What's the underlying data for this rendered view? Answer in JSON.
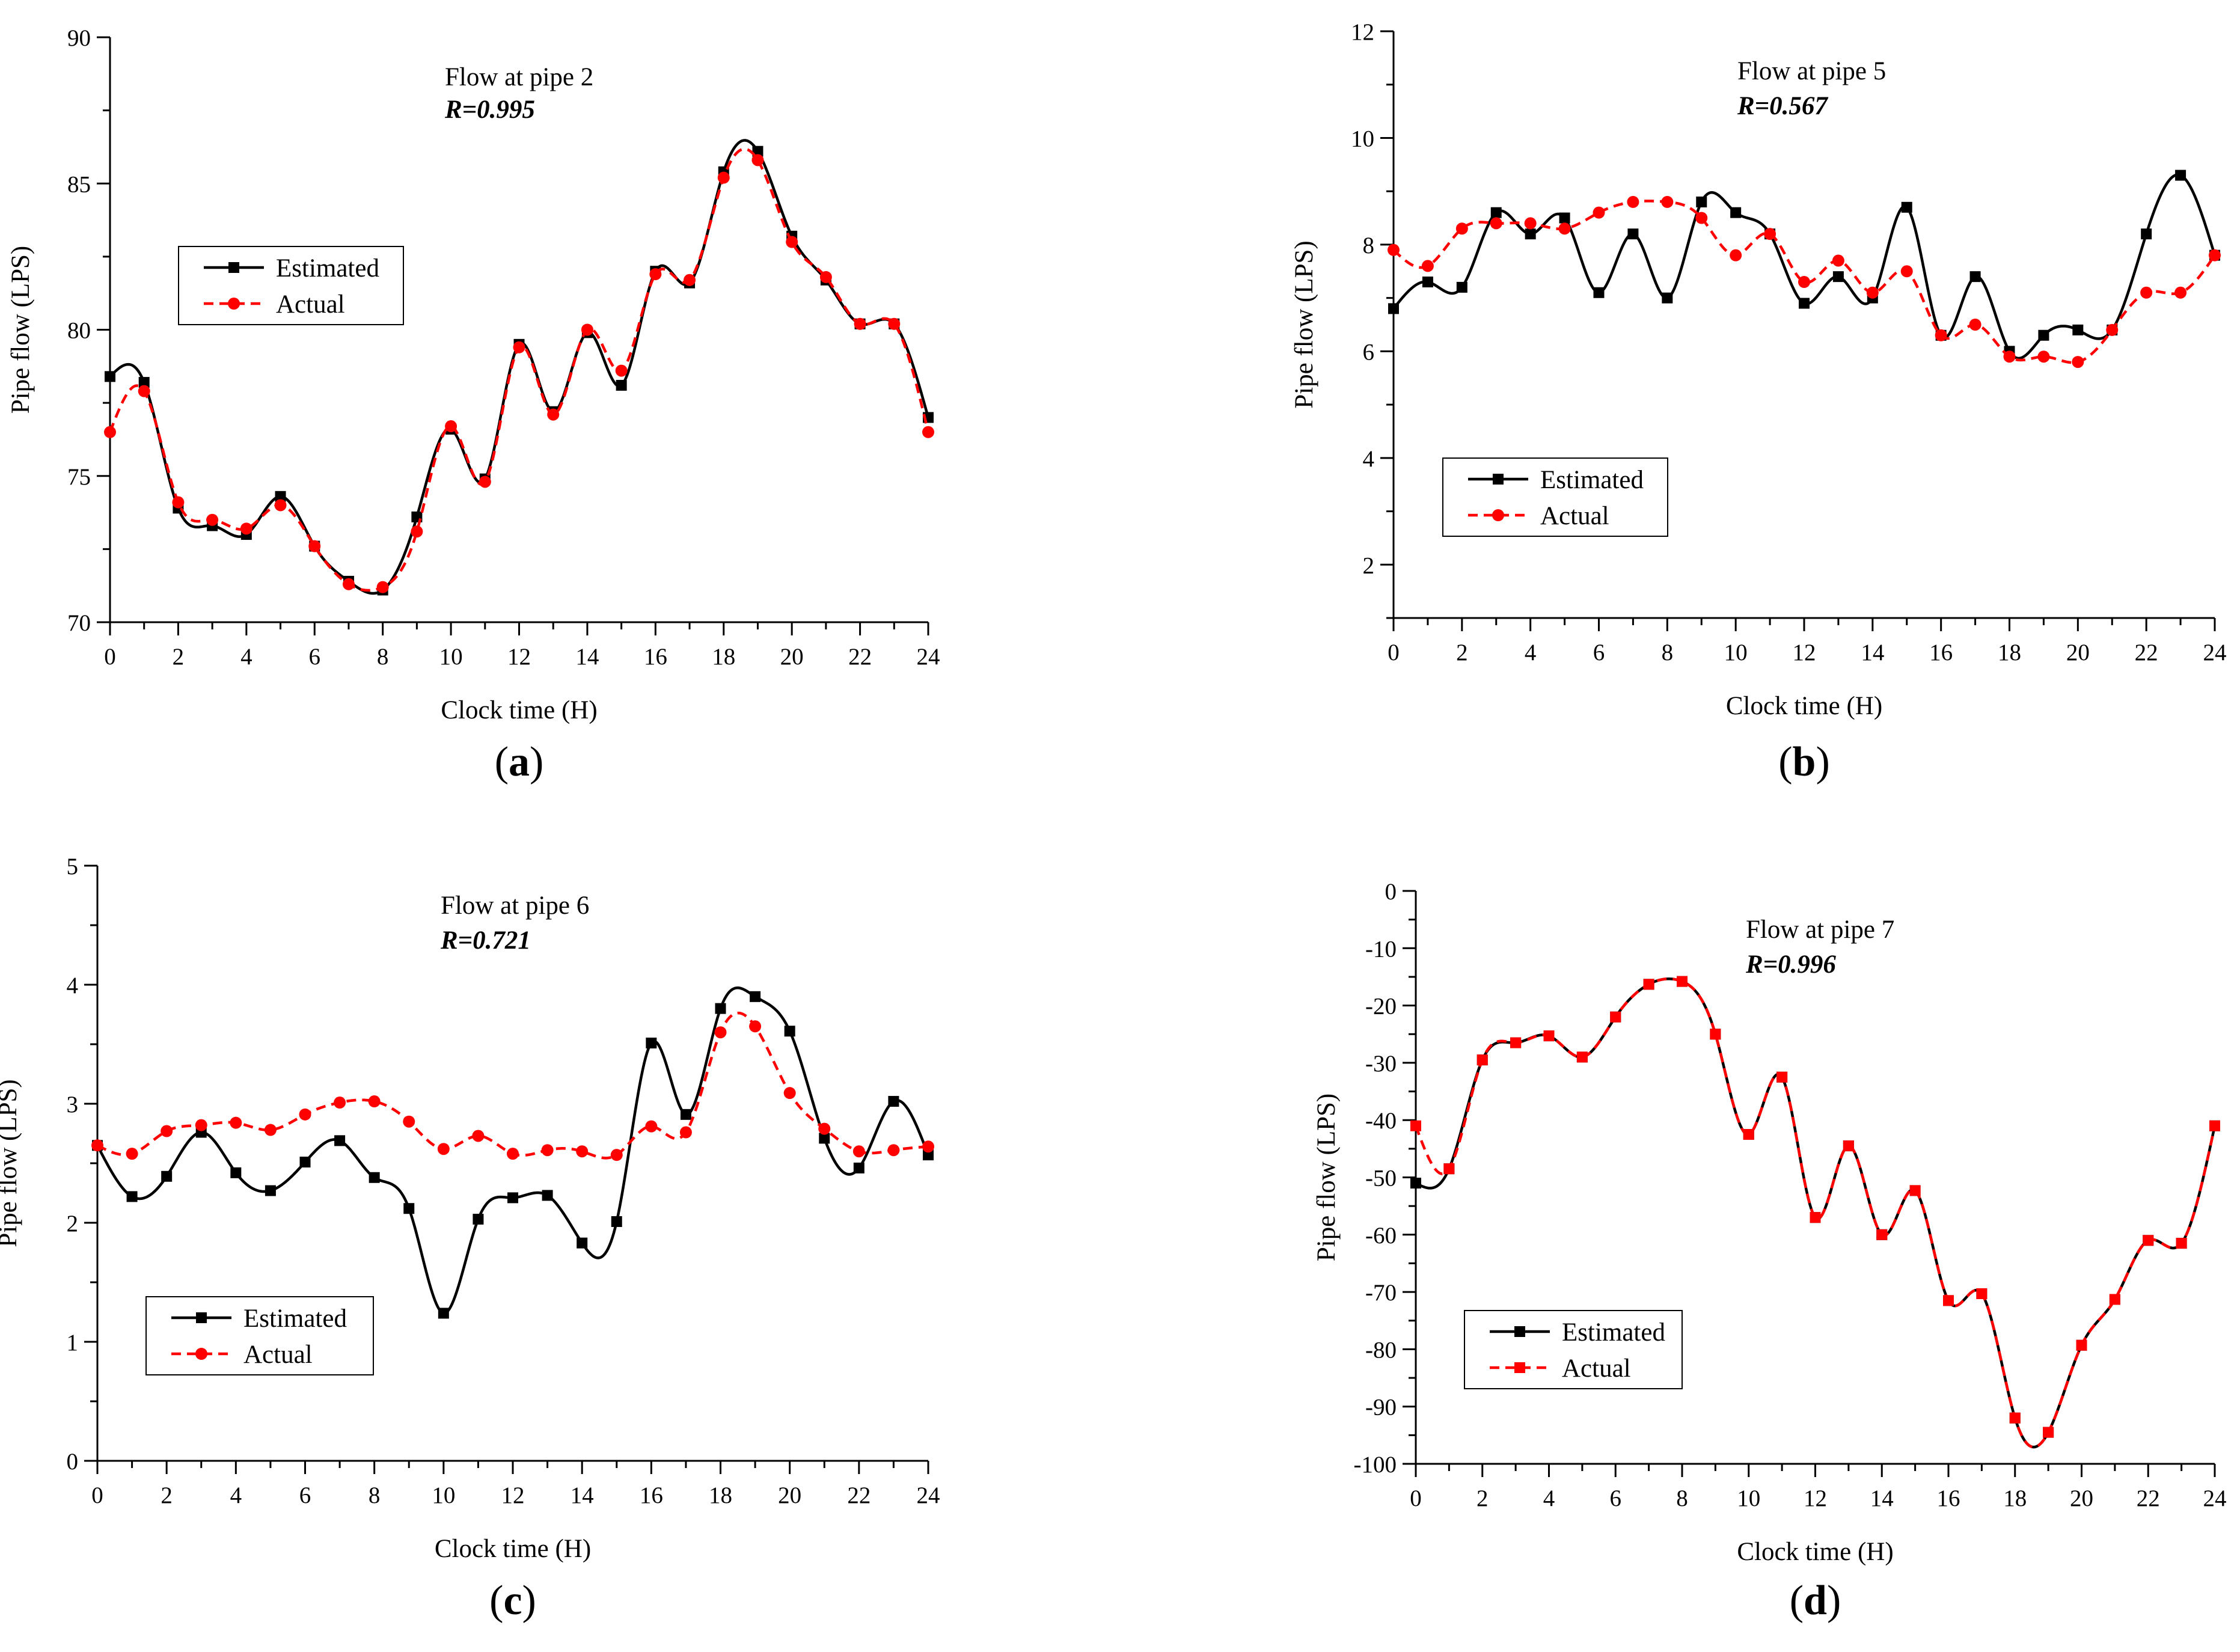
{
  "figure": {
    "series_colors": {
      "estimated": "#000000",
      "actual": "#ff0000"
    }
  },
  "chart_data": [
    {
      "type": "line",
      "panel_label": "(a)",
      "title": "Flow at pipe 2",
      "annotation": "R=0.995",
      "xlabel": "Clock time (H)",
      "ylabel": "Pipe flow (LPS)",
      "xlim": [
        0,
        24
      ],
      "ylim": [
        70,
        90
      ],
      "xticks": [
        0,
        2,
        4,
        6,
        8,
        10,
        12,
        14,
        16,
        18,
        20,
        22,
        24
      ],
      "yticks": [
        70,
        75,
        80,
        85,
        90
      ],
      "legend": {
        "position": "middle-left",
        "entries": [
          "Estimated",
          "Actual"
        ]
      },
      "x": [
        0,
        1,
        2,
        3,
        4,
        5,
        6,
        7,
        8,
        9,
        10,
        11,
        12,
        13,
        14,
        15,
        16,
        17,
        18,
        19,
        20,
        21,
        22,
        23,
        24
      ],
      "series": [
        {
          "name": "Estimated",
          "style": "solid",
          "marker": "square",
          "values": [
            78.4,
            78.2,
            73.9,
            73.3,
            73.0,
            74.3,
            72.6,
            71.4,
            71.1,
            73.6,
            76.6,
            74.9,
            79.5,
            77.2,
            79.9,
            78.1,
            82.0,
            81.6,
            85.4,
            86.1,
            83.2,
            81.7,
            80.2,
            80.2,
            77.0
          ]
        },
        {
          "name": "Actual",
          "style": "dashed",
          "marker": "circle",
          "values": [
            76.5,
            77.9,
            74.1,
            73.5,
            73.2,
            74.0,
            72.6,
            71.3,
            71.2,
            73.1,
            76.7,
            74.8,
            79.4,
            77.1,
            80.0,
            78.6,
            81.9,
            81.7,
            85.2,
            85.8,
            83.0,
            81.8,
            80.2,
            80.2,
            76.5
          ]
        }
      ]
    },
    {
      "type": "line",
      "panel_label": "(b)",
      "title": "Flow at pipe 5",
      "annotation": "R=0.567",
      "xlabel": "Clock time (H)",
      "ylabel": "Pipe flow (LPS)",
      "xlim": [
        0,
        24
      ],
      "ylim": [
        1,
        12
      ],
      "xticks": [
        0,
        2,
        4,
        6,
        8,
        10,
        12,
        14,
        16,
        18,
        20,
        22,
        24
      ],
      "yticks": [
        2,
        4,
        6,
        8,
        10,
        12
      ],
      "legend": {
        "position": "bottom-left",
        "entries": [
          "Estimated",
          "Actual"
        ]
      },
      "x": [
        0,
        1,
        2,
        3,
        4,
        5,
        6,
        7,
        8,
        9,
        10,
        11,
        12,
        13,
        14,
        15,
        16,
        17,
        18,
        19,
        20,
        21,
        22,
        23,
        24
      ],
      "series": [
        {
          "name": "Estimated",
          "style": "solid",
          "marker": "square",
          "values": [
            6.8,
            7.3,
            7.2,
            8.6,
            8.2,
            8.5,
            7.1,
            8.2,
            7.0,
            8.8,
            8.6,
            8.2,
            6.9,
            7.4,
            7.0,
            8.7,
            6.3,
            7.4,
            6.0,
            6.3,
            6.4,
            6.4,
            8.2,
            9.3,
            7.8
          ]
        },
        {
          "name": "Actual",
          "style": "dashed",
          "marker": "circle",
          "values": [
            7.9,
            7.6,
            8.3,
            8.4,
            8.4,
            8.3,
            8.6,
            8.8,
            8.8,
            8.5,
            7.8,
            8.2,
            7.3,
            7.7,
            7.1,
            7.5,
            6.3,
            6.5,
            5.9,
            5.9,
            5.8,
            6.4,
            7.1,
            7.1,
            7.8
          ]
        }
      ]
    },
    {
      "type": "line",
      "panel_label": "(c)",
      "title": "Flow at pipe 6",
      "annotation": "R=0.721",
      "xlabel": "Clock time (H)",
      "ylabel": "Pipe flow (LPS)",
      "xlim": [
        0,
        24
      ],
      "ylim": [
        0,
        5
      ],
      "xticks": [
        0,
        2,
        4,
        6,
        8,
        10,
        12,
        14,
        16,
        18,
        20,
        22,
        24
      ],
      "yticks": [
        0,
        1,
        2,
        3,
        4,
        5
      ],
      "legend": {
        "position": "bottom-left",
        "entries": [
          "Estimated",
          "Actual"
        ]
      },
      "x": [
        0,
        1,
        2,
        3,
        4,
        5,
        6,
        7,
        8,
        9,
        10,
        11,
        12,
        13,
        14,
        15,
        16,
        17,
        18,
        19,
        20,
        21,
        22,
        23,
        24
      ],
      "series": [
        {
          "name": "Estimated",
          "style": "solid",
          "marker": "square",
          "values": [
            2.65,
            2.22,
            2.39,
            2.76,
            2.42,
            2.27,
            2.51,
            2.69,
            2.38,
            2.12,
            1.24,
            2.03,
            2.21,
            2.23,
            1.83,
            2.01,
            3.51,
            2.91,
            3.8,
            3.9,
            3.61,
            2.71,
            2.46,
            3.02,
            2.57
          ]
        },
        {
          "name": "Actual",
          "style": "dashed",
          "marker": "circle",
          "values": [
            2.65,
            2.58,
            2.77,
            2.82,
            2.84,
            2.78,
            2.91,
            3.01,
            3.02,
            2.85,
            2.62,
            2.73,
            2.58,
            2.61,
            2.6,
            2.57,
            2.81,
            2.76,
            3.6,
            3.65,
            3.09,
            2.79,
            2.6,
            2.61,
            2.64
          ]
        }
      ]
    },
    {
      "type": "line",
      "panel_label": "(d)",
      "title": "Flow at pipe 7",
      "annotation": "R=0.996",
      "xlabel": "Clock time (H)",
      "ylabel": "Pipe flow (LPS)",
      "xlim": [
        0,
        24
      ],
      "ylim": [
        -100,
        0
      ],
      "xticks": [
        0,
        2,
        4,
        6,
        8,
        10,
        12,
        14,
        16,
        18,
        20,
        22,
        24
      ],
      "yticks": [
        0,
        -10,
        -20,
        -30,
        -40,
        -50,
        -60,
        -70,
        -80,
        -90,
        -100
      ],
      "legend": {
        "position": "bottom-left",
        "entries": [
          "Estimated",
          "Actual"
        ]
      },
      "x": [
        0,
        1,
        2,
        3,
        4,
        5,
        6,
        7,
        8,
        9,
        10,
        11,
        12,
        13,
        14,
        15,
        16,
        17,
        18,
        19,
        20,
        21,
        22,
        23,
        24
      ],
      "series": [
        {
          "name": "Estimated",
          "style": "solid",
          "marker": "square",
          "values": [
            -51,
            -48.5,
            -29.5,
            -26.5,
            -25.3,
            -29,
            -22,
            -16.3,
            -15.8,
            -25,
            -42.5,
            -32.5,
            -57,
            -44.5,
            -60,
            -52.3,
            -71.5,
            -70.3,
            -92,
            -94.5,
            -79.3,
            -71.3,
            -61,
            -61.5,
            -41
          ]
        },
        {
          "name": "Actual",
          "style": "dashed",
          "marker": "circle",
          "values": [
            -41,
            -48.5,
            -29.5,
            -26.5,
            -25.3,
            -29,
            -22,
            -16.3,
            -15.8,
            -25,
            -42.5,
            -32.5,
            -57,
            -44.5,
            -60,
            -52.3,
            -71.5,
            -70.3,
            -92,
            -94.5,
            -79.3,
            -71.3,
            -61,
            -61.5,
            -41
          ]
        }
      ]
    }
  ]
}
